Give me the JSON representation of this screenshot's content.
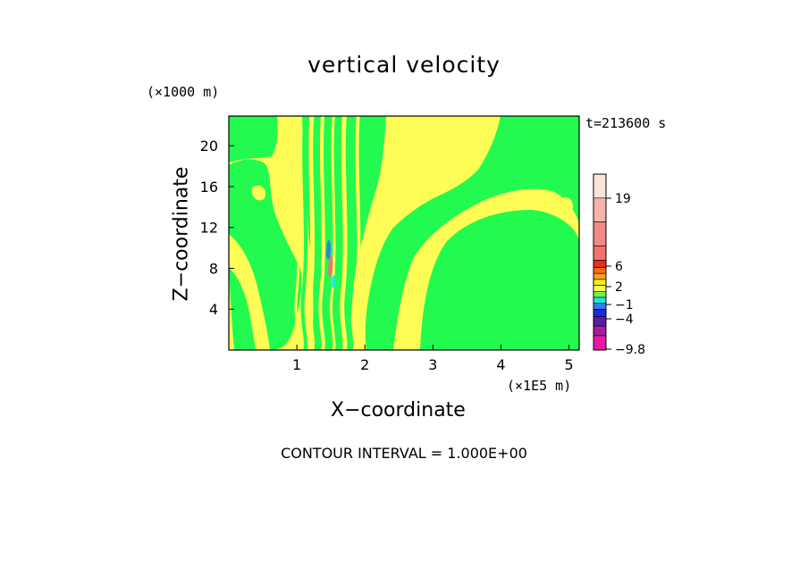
{
  "chart_data": {
    "type": "heatmap",
    "title": "vertical velocity",
    "xlabel": "X−coordinate",
    "ylabel": "Z−coordinate",
    "x_unit_label": "(×1E5 m)",
    "y_unit_label": "(×1000 m)",
    "time_label": "t=213600 s",
    "xlim": [
      0,
      5.15
    ],
    "ylim": [
      0,
      22.9
    ],
    "x_ticks": [
      1,
      2,
      3,
      4,
      5
    ],
    "y_ticks": [
      4,
      8,
      12,
      16,
      20
    ],
    "footer": "CONTOUR INTERVAL = 1.000E+00",
    "colorbar": {
      "labels": [
        "19",
        "6",
        "2",
        "−1",
        "−4",
        "−9.8"
      ],
      "colors": [
        "#fbe3dc",
        "#f4b4aa",
        "#ef8a85",
        "#f4716e",
        "#ee2a1e",
        "#f46b14",
        "#f5a31c",
        "#f6ed16",
        "#fdfd55",
        "#6dfa4c",
        "#1fe8e4",
        "#3a7af0",
        "#1a2ce0",
        "#5a1aa6",
        "#a31ca3",
        "#e619a4"
      ]
    },
    "field_colors": {
      "positive_weak": "#fdfd55",
      "negative_weak": "#22fa50",
      "strong_pos": "#f4716e",
      "strong_neg": "#3a7af0"
    }
  }
}
